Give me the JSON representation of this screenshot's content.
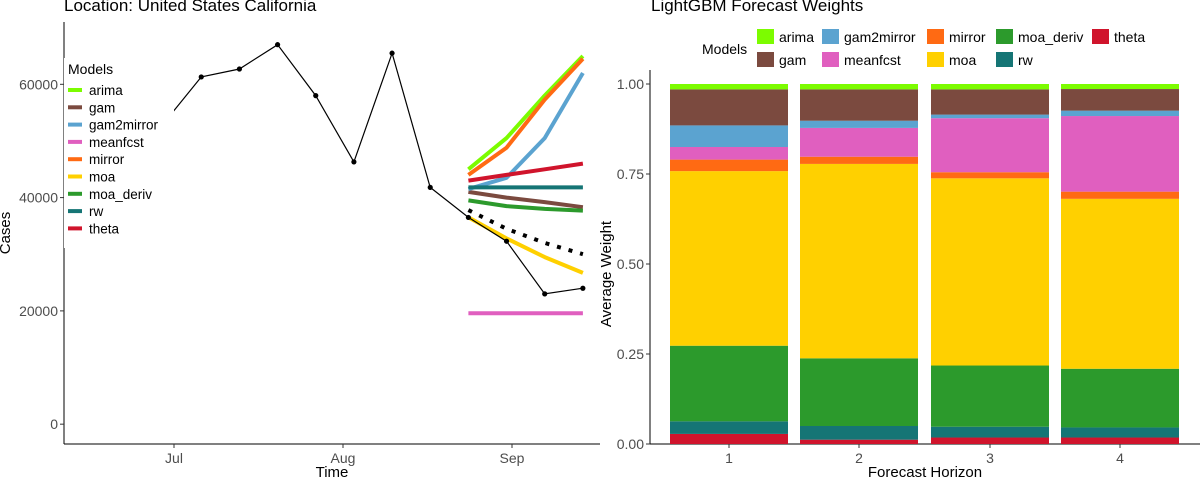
{
  "chart_data": [
    {
      "type": "line",
      "title": "Location: United States California",
      "xlabel": "Time",
      "ylabel": "Cases",
      "x_ticks": [
        "Jul",
        "Aug",
        "Sep"
      ],
      "y_ticks": [
        0,
        20000,
        40000,
        60000
      ],
      "ylim": [
        -3500,
        71000
      ],
      "grid": false,
      "legend": {
        "title": "Models",
        "position": "left-inside"
      },
      "observed": {
        "x": [
          "2020-06-29",
          "2020-07-06",
          "2020-07-13",
          "2020-07-20",
          "2020-07-27",
          "2020-08-03",
          "2020-08-10",
          "2020-08-17",
          "2020-08-24",
          "2020-08-31",
          "2020-09-07",
          "2020-09-14"
        ],
        "y": [
          53000,
          61300,
          62700,
          67000,
          58000,
          46300,
          65500,
          41800,
          36500,
          32300,
          23000,
          24000
        ]
      },
      "forecast_x": [
        "2020-08-24",
        "2020-08-31",
        "2020-09-07",
        "2020-09-14"
      ],
      "ensemble_dotted": [
        37800,
        34500,
        32000,
        30000
      ],
      "series": [
        {
          "name": "arima",
          "color": "#7CFC00",
          "values": [
            45000,
            50500,
            58000,
            65000
          ]
        },
        {
          "name": "gam",
          "color": "#7B4A3F",
          "values": [
            41000,
            40000,
            39200,
            38300
          ]
        },
        {
          "name": "gam2mirror",
          "color": "#5BA3D0",
          "values": [
            41500,
            43500,
            50500,
            62000
          ]
        },
        {
          "name": "meanfcst",
          "color": "#E05FBF",
          "values": [
            19600,
            19600,
            19600,
            19600
          ]
        },
        {
          "name": "mirror",
          "color": "#FF6A13",
          "values": [
            44000,
            48800,
            57300,
            64500
          ]
        },
        {
          "name": "moa",
          "color": "#FFD000",
          "values": [
            36500,
            32800,
            29500,
            26700
          ]
        },
        {
          "name": "moa_deriv",
          "color": "#2C9A2C",
          "values": [
            39500,
            38500,
            38000,
            37700
          ]
        },
        {
          "name": "rw",
          "color": "#157575",
          "values": [
            41800,
            41800,
            41800,
            41800
          ]
        },
        {
          "name": "theta",
          "color": "#D0142C",
          "values": [
            43000,
            44000,
            45000,
            46000
          ]
        }
      ]
    },
    {
      "type": "bar",
      "stacked": true,
      "title": "LightGBM Forecast Weights",
      "xlabel": "Forecast Horizon",
      "ylabel": "Average Weight",
      "categories": [
        "1",
        "2",
        "3",
        "4"
      ],
      "y_ticks": [
        "0.00",
        "0.25",
        "0.50",
        "0.75",
        "1.00"
      ],
      "ylim": [
        0,
        1
      ],
      "grid": false,
      "legend": {
        "title": "Models",
        "position": "top"
      },
      "legend_order": [
        "arima",
        "gam2mirror",
        "mirror",
        "moa_deriv",
        "theta",
        "gam",
        "meanfcst",
        "moa",
        "rw"
      ],
      "series": [
        {
          "name": "theta",
          "color": "#D0142C",
          "values": [
            0.028,
            0.012,
            0.018,
            0.018
          ]
        },
        {
          "name": "rw",
          "color": "#157575",
          "values": [
            0.035,
            0.038,
            0.03,
            0.028
          ]
        },
        {
          "name": "moa_deriv",
          "color": "#2C9A2C",
          "values": [
            0.21,
            0.188,
            0.17,
            0.163
          ]
        },
        {
          "name": "moa",
          "color": "#FFD000",
          "values": [
            0.485,
            0.54,
            0.52,
            0.472
          ]
        },
        {
          "name": "mirror",
          "color": "#FF6A13",
          "values": [
            0.032,
            0.02,
            0.017,
            0.02
          ]
        },
        {
          "name": "meanfcst",
          "color": "#E05FBF",
          "values": [
            0.035,
            0.08,
            0.15,
            0.21
          ]
        },
        {
          "name": "gam2mirror",
          "color": "#5BA3D0",
          "values": [
            0.06,
            0.02,
            0.01,
            0.015
          ]
        },
        {
          "name": "gam",
          "color": "#7B4A3F",
          "values": [
            0.1,
            0.087,
            0.07,
            0.06
          ]
        },
        {
          "name": "arima",
          "color": "#7CFC00",
          "values": [
            0.015,
            0.015,
            0.015,
            0.014
          ]
        }
      ]
    }
  ]
}
